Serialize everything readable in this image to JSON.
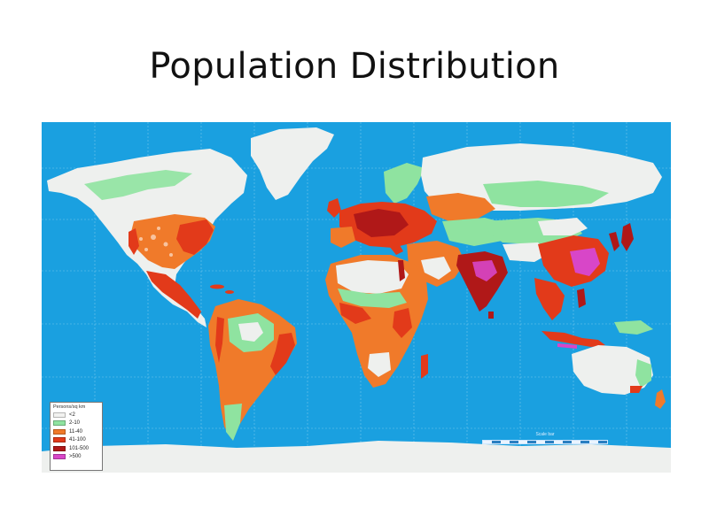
{
  "title": "Population Distribution",
  "map": {
    "ocean_color": "#1aa0e0",
    "land_uninhabited_color": "#eef0ee",
    "legend": {
      "title": "Persons/sq km",
      "items": [
        {
          "label": "<2",
          "color": "#f2f2f0"
        },
        {
          "label": "2-10",
          "color": "#8fe3a0"
        },
        {
          "label": "11-40",
          "color": "#f07a2a"
        },
        {
          "label": "41-100",
          "color": "#e23a1a"
        },
        {
          "label": "101-500",
          "color": "#b01818"
        },
        {
          "label": ">500",
          "color": "#d846c8"
        }
      ]
    },
    "scale_text": "Scale bar",
    "scale_ticks": "0 1000 2000 3000 km"
  }
}
